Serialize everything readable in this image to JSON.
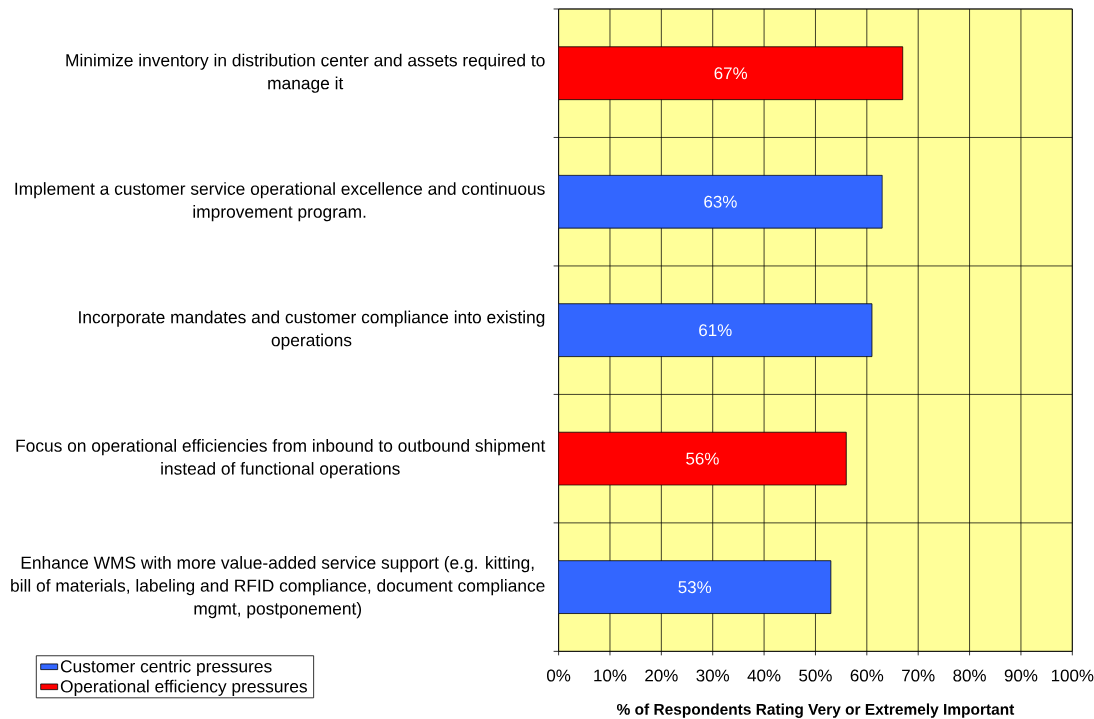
{
  "chart_data": {
    "type": "bar",
    "orientation": "horizontal",
    "xlabel": "% of Respondents Rating Very or Extremely Important",
    "categories": [
      "Minimize inventory in distribution center and assets required to manage it",
      "Implement a customer service operational excellence and continuous improvement program.",
      "Incorporate mandates and customer compliance into existing operations",
      "Focus on operational efficiencies from inbound to outbound shipment instead of functional operations",
      "Enhance WMS with more value-added service support (e.g. kitting, bill of materials, labeling and RFID compliance, document compliance mgmt, postponement)"
    ],
    "series": [
      {
        "name": "Customer centric pressures",
        "color": "#3366ff",
        "values": [
          null,
          63,
          61,
          null,
          53
        ],
        "value_labels": [
          null,
          "63%",
          "61%",
          null,
          "53%"
        ]
      },
      {
        "name": "Operational efficiency pressures",
        "color": "#ff0000",
        "values": [
          67,
          null,
          null,
          56,
          null
        ],
        "value_labels": [
          "67%",
          null,
          null,
          "56%",
          null
        ]
      }
    ],
    "xlim": [
      0,
      100
    ],
    "xticks": [
      {
        "value": 0,
        "label": "0%"
      },
      {
        "value": 10,
        "label": "10%"
      },
      {
        "value": 20,
        "label": "20%"
      },
      {
        "value": 30,
        "label": "30%"
      },
      {
        "value": 40,
        "label": "40%"
      },
      {
        "value": 50,
        "label": "50%"
      },
      {
        "value": 60,
        "label": "60%"
      },
      {
        "value": 70,
        "label": "70%"
      },
      {
        "value": 80,
        "label": "80%"
      },
      {
        "value": 90,
        "label": "90%"
      },
      {
        "value": 100,
        "label": "100%"
      }
    ],
    "grid": true,
    "legend": "bottom left"
  }
}
